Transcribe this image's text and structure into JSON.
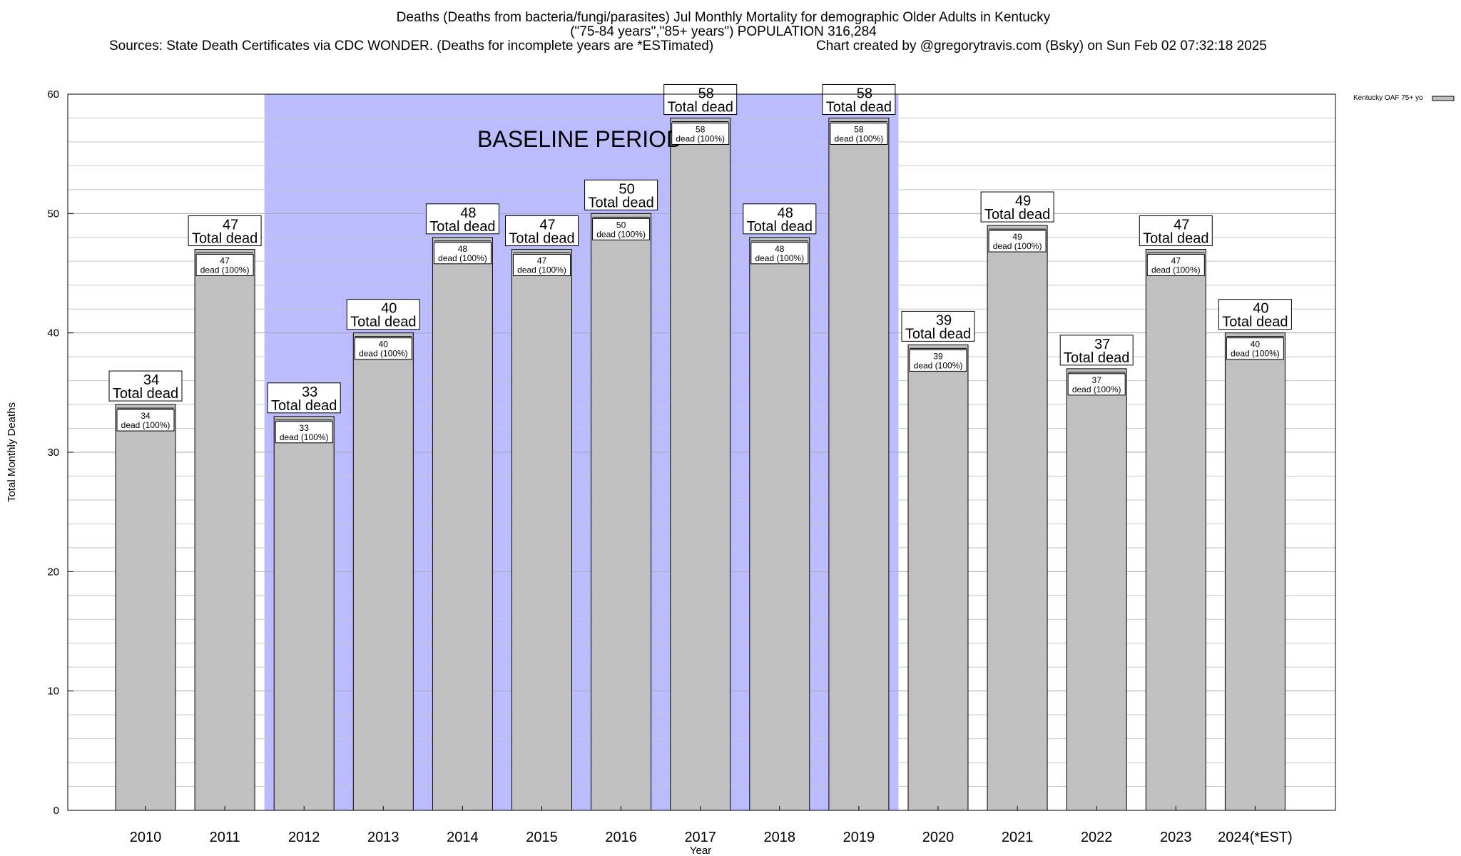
{
  "header": {
    "title_line1": "Deaths (Deaths from bacteria/fungi/parasites) Jul Monthly Mortality for demographic Older Adults in Kentucky",
    "title_line2": "(\"75-84 years\",\"85+ years\") POPULATION 316,284",
    "sources": "Sources: State Death Certificates via CDC WONDER. (Deaths for incomplete years are *ESTimated)",
    "credit": "Chart created by @gregorytravis.com (Bsky) on Sun Feb 02 07:32:18 2025"
  },
  "chart_data": {
    "type": "bar",
    "title": "Deaths (Deaths from bacteria/fungi/parasites) Jul Monthly Mortality for demographic Older Adults in Kentucky",
    "xlabel": "Year",
    "ylabel": "Total Monthly Deaths",
    "ylim": [
      0,
      60
    ],
    "yticks": [
      0,
      10,
      20,
      30,
      40,
      50,
      60
    ],
    "grid": true,
    "categories": [
      "2010",
      "2011",
      "2012",
      "2013",
      "2014",
      "2015",
      "2016",
      "2017",
      "2018",
      "2019",
      "2020",
      "2021",
      "2022",
      "2023",
      "2024(*EST)"
    ],
    "series": [
      {
        "name": "Kentucky OAF 75+ yo",
        "values": [
          34,
          47,
          33,
          40,
          48,
          47,
          50,
          58,
          48,
          58,
          39,
          49,
          37,
          47,
          40
        ],
        "color": "#c0c0c0"
      }
    ],
    "total_label_suffix": "Total dead",
    "inner_label_suffix": "dead (100%)",
    "baseline_period": {
      "label": "BASELINE PERIOD",
      "from": "2012",
      "to": "2019",
      "color": "#bbbbff"
    },
    "legend": {
      "placement": "top-right",
      "entries": [
        "Kentucky OAF 75+ yo"
      ]
    }
  }
}
